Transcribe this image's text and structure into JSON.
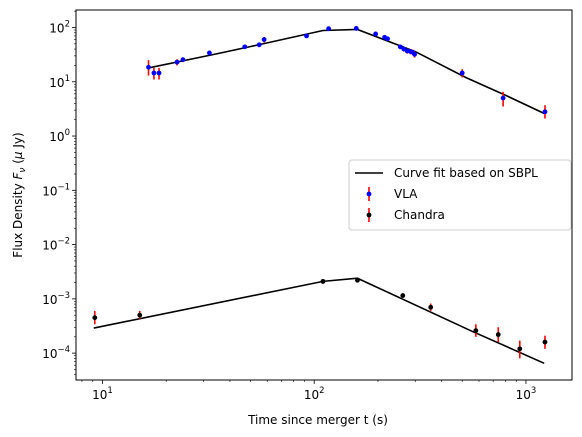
{
  "chart_data": {
    "type": "scatter",
    "title": "",
    "xlabel": "Time since merger t (s)",
    "ylabel_prefix": "Flux Density ",
    "ylabel_symbol": "F",
    "ylabel_subscript": "ν",
    "ylabel_unit_open": " (",
    "ylabel_unit_mu": "μ",
    "ylabel_unit_rest": " Jy)",
    "xscale": "log",
    "yscale": "log",
    "xlim": [
      7.5,
      1650
    ],
    "ylim": [
      3.2e-05,
      210
    ],
    "grid": false,
    "legend_position": "center-right",
    "x_ticks": [
      {
        "value": 10,
        "base": "10",
        "exp": "1"
      },
      {
        "value": 100,
        "base": "10",
        "exp": "2"
      },
      {
        "value": 1000,
        "base": "10",
        "exp": "3"
      }
    ],
    "y_ticks": [
      {
        "value": 0.0001,
        "base": "10",
        "exp": "−4"
      },
      {
        "value": 0.001,
        "base": "10",
        "exp": "−3"
      },
      {
        "value": 0.01,
        "base": "10",
        "exp": "−2"
      },
      {
        "value": 0.1,
        "base": "10",
        "exp": "−1"
      },
      {
        "value": 1,
        "base": "10",
        "exp": "0"
      },
      {
        "value": 10,
        "base": "10",
        "exp": "1"
      },
      {
        "value": 100,
        "base": "10",
        "exp": "2"
      }
    ],
    "series": [
      {
        "name": "Curve fit based on SBPL",
        "kind": "line",
        "color": "#000000",
        "points": [
          [
            16.5,
            18
          ],
          [
            35,
            33
          ],
          [
            60,
            52
          ],
          [
            110,
            88
          ],
          [
            160,
            92
          ],
          [
            300,
            36
          ],
          [
            520,
            12
          ],
          [
            820,
            5.4
          ],
          [
            1220,
            2.6
          ]
        ]
      },
      {
        "name": "Curve fit based on SBPL",
        "kind": "line",
        "color": "#000000",
        "in_legend": false,
        "points": [
          [
            9.1,
            0.00029
          ],
          [
            110,
            0.0021
          ],
          [
            160,
            0.0024
          ],
          [
            560,
            0.00025
          ],
          [
            1220,
            6.5e-05
          ]
        ]
      },
      {
        "name": "VLA",
        "kind": "errorbar",
        "marker_color": "#0000ff",
        "error_color": "#ff0000",
        "points": [
          {
            "x": 16.5,
            "y": 18.5,
            "lo": 13,
            "hi": 25
          },
          {
            "x": 17.5,
            "y": 14.5,
            "lo": 11,
            "hi": 18
          },
          {
            "x": 18.5,
            "y": 14.5,
            "lo": 11,
            "hi": 18
          },
          {
            "x": 22.5,
            "y": 23,
            "lo": 20,
            "hi": 26
          },
          {
            "x": 24,
            "y": 25.5,
            "lo": 23,
            "hi": 28
          },
          {
            "x": 32,
            "y": 34,
            "lo": 31,
            "hi": 37
          },
          {
            "x": 47,
            "y": 44,
            "lo": 41,
            "hi": 47
          },
          {
            "x": 55,
            "y": 48,
            "lo": 44,
            "hi": 52
          },
          {
            "x": 58,
            "y": 60,
            "lo": 53,
            "hi": 67
          },
          {
            "x": 92,
            "y": 70,
            "lo": 66,
            "hi": 75
          },
          {
            "x": 117,
            "y": 95,
            "lo": 89,
            "hi": 101
          },
          {
            "x": 158,
            "y": 96,
            "lo": 90,
            "hi": 103
          },
          {
            "x": 195,
            "y": 76,
            "lo": 71,
            "hi": 81
          },
          {
            "x": 215,
            "y": 66,
            "lo": 61,
            "hi": 71
          },
          {
            "x": 222,
            "y": 62,
            "lo": 57,
            "hi": 67
          },
          {
            "x": 255,
            "y": 44,
            "lo": 40,
            "hi": 48
          },
          {
            "x": 265,
            "y": 40,
            "lo": 36,
            "hi": 44
          },
          {
            "x": 275,
            "y": 37,
            "lo": 33,
            "hi": 41
          },
          {
            "x": 285,
            "y": 36,
            "lo": 32,
            "hi": 40
          },
          {
            "x": 292,
            "y": 35,
            "lo": 31,
            "hi": 39
          },
          {
            "x": 298,
            "y": 32,
            "lo": 28,
            "hi": 36
          },
          {
            "x": 500,
            "y": 14.5,
            "lo": 12,
            "hi": 17
          },
          {
            "x": 780,
            "y": 5,
            "lo": 3.5,
            "hi": 6.5
          },
          {
            "x": 1230,
            "y": 2.8,
            "lo": 2.1,
            "hi": 3.7
          }
        ]
      },
      {
        "name": "Chandra",
        "kind": "errorbar",
        "marker_color": "#000000",
        "error_color": "#ff0000",
        "points": [
          {
            "x": 9.2,
            "y": 0.00045,
            "lo": 0.00034,
            "hi": 0.0006
          },
          {
            "x": 15,
            "y": 0.0005,
            "lo": 0.00043,
            "hi": 0.0006
          },
          {
            "x": 110,
            "y": 0.0021,
            "lo": 0.0019,
            "hi": 0.0023
          },
          {
            "x": 160,
            "y": 0.0022,
            "lo": 0.002,
            "hi": 0.0024
          },
          {
            "x": 262,
            "y": 0.00115,
            "lo": 0.00105,
            "hi": 0.00126
          },
          {
            "x": 355,
            "y": 0.0007,
            "lo": 0.0006,
            "hi": 0.00082
          },
          {
            "x": 580,
            "y": 0.00026,
            "lo": 0.0002,
            "hi": 0.00034
          },
          {
            "x": 740,
            "y": 0.00022,
            "lo": 0.00016,
            "hi": 0.0003
          },
          {
            "x": 935,
            "y": 0.00012,
            "lo": 8e-05,
            "hi": 0.00017
          },
          {
            "x": 1230,
            "y": 0.00016,
            "lo": 0.00012,
            "hi": 0.00021
          }
        ]
      }
    ]
  }
}
